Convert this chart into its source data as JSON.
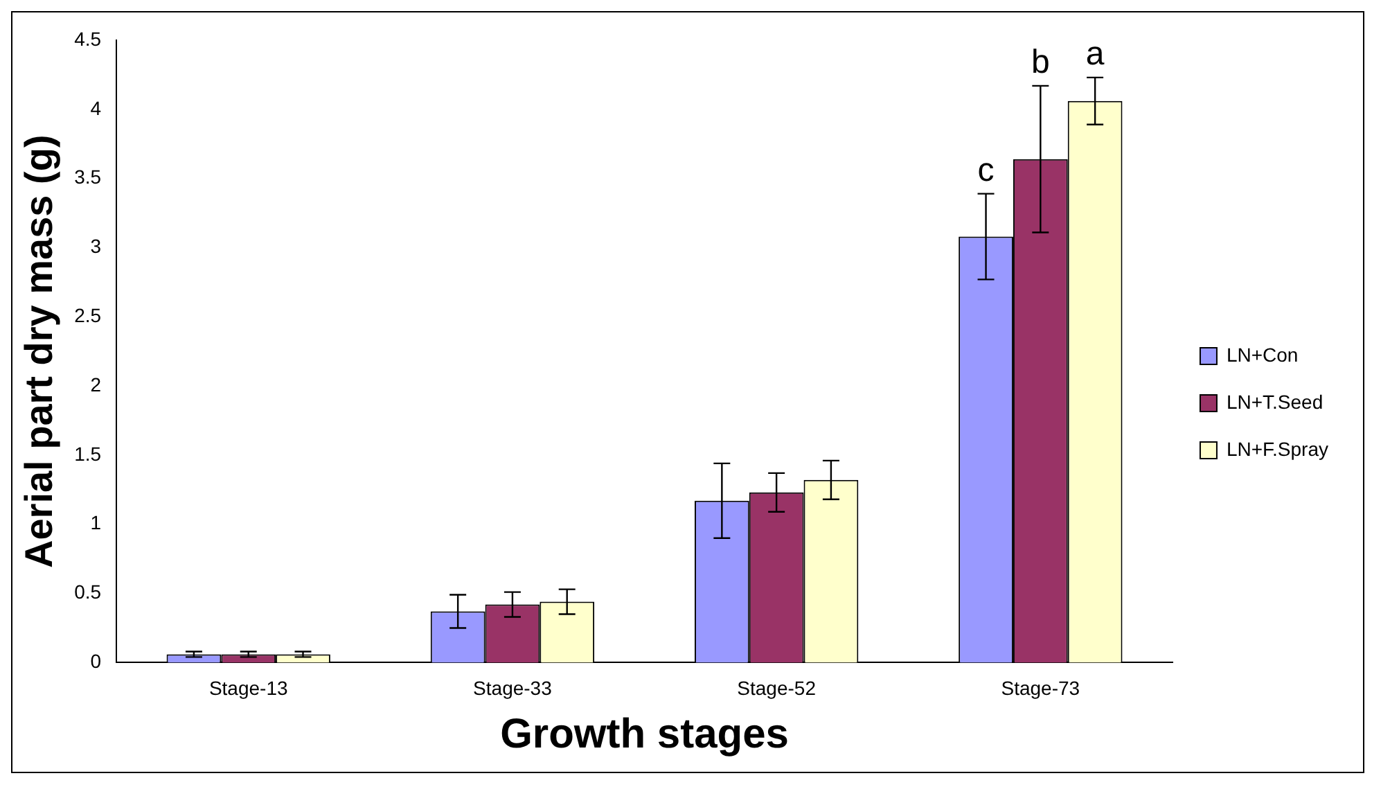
{
  "chart_data": {
    "type": "bar",
    "xlabel": "Growth stages",
    "ylabel": "Aerial part dry mass (g)",
    "categories": [
      "Stage-13",
      "Stage-33",
      "Stage-52",
      "Stage-73"
    ],
    "series": [
      {
        "name": "LN+Con",
        "color": "#9999ff",
        "values": [
          0.06,
          0.37,
          1.17,
          3.08
        ],
        "errors": [
          0.02,
          0.12,
          0.27,
          0.31
        ]
      },
      {
        "name": "LN+T.Seed",
        "color": "#993366",
        "values": [
          0.06,
          0.42,
          1.23,
          3.64
        ],
        "errors": [
          0.02,
          0.09,
          0.14,
          0.53
        ]
      },
      {
        "name": "LN+F.Spray",
        "color": "#ffffcc",
        "values": [
          0.06,
          0.44,
          1.32,
          4.06
        ],
        "errors": [
          0.02,
          0.09,
          0.14,
          0.17
        ]
      }
    ],
    "ylim": [
      0,
      4.5
    ],
    "yticks": [
      0,
      0.5,
      1,
      1.5,
      2,
      2.5,
      3,
      3.5,
      4,
      4.5
    ],
    "grid": false,
    "legend": "right",
    "annotations": [
      {
        "text": "c",
        "x": "Stage-73",
        "y": 3.08
      },
      {
        "text": "b",
        "x": "Stage-73",
        "y": 3.64
      },
      {
        "text": "a",
        "x": "Stage-73",
        "y": 4.06
      }
    ]
  }
}
